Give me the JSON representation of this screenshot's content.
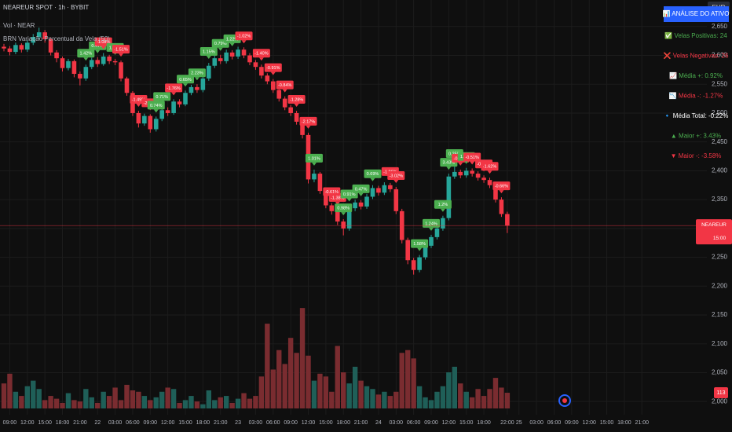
{
  "header": {
    "symbol": "NEAREUR SPOT · 1h · BYBIT",
    "volume": "Vol · NEAR",
    "indicator": "BRN Variação Percentual da Vela (50)"
  },
  "panel": {
    "title": "📊 ANÁLISE DO ATIVO",
    "rows": [
      {
        "text": "✅ Velas Positivas: 24",
        "color": "#4caf50"
      },
      {
        "text": "❌ Velas Negativas: 26",
        "color": "#f23645"
      },
      {
        "text": "📈 Média +: 0.92%",
        "color": "#4caf50"
      },
      {
        "text": "📉 Média -: -1.27%",
        "color": "#f23645"
      },
      {
        "text": "🔹 Média Total: -0.22%",
        "color": "#ffffff"
      },
      {
        "text": "▲ Maior +: 3.43%",
        "color": "#4caf50"
      },
      {
        "text": "▼ Maior -: -3.58%",
        "color": "#f23645"
      }
    ]
  },
  "chart_data": {
    "type": "candlestick",
    "currency": "EUR",
    "price_tag": "NEAREUR",
    "countdown": "15:00",
    "up_color": "#26a69a",
    "down_color": "#f23645",
    "open": [
      2615,
      2612,
      2606,
      2618,
      2610,
      2622,
      2632,
      2640,
      2628,
      2605,
      2595,
      2578,
      2590,
      2568,
      2560,
      2580,
      2592,
      2585,
      2598,
      2590,
      2588,
      2560,
      2535,
      2500,
      2482,
      2495,
      2472,
      2490,
      2505,
      2500,
      2520,
      2515,
      2535,
      2545,
      2540,
      2560,
      2582,
      2595,
      2590,
      2605,
      2598,
      2610,
      2600,
      2588,
      2580,
      2565,
      2555,
      2540,
      2525,
      2510,
      2500,
      2485,
      2462,
      2385,
      2395,
      2365,
      2340,
      2330,
      2312,
      2300,
      2335,
      2345,
      2338,
      2355,
      2370,
      2362,
      2375,
      2368,
      2330,
      2280,
      2245,
      2228,
      2250,
      2270,
      2285,
      2300,
      2318,
      2390,
      2398,
      2392,
      2400,
      2395,
      2388,
      2384,
      2375,
      2350,
      2325
    ],
    "high": [
      2620,
      2616,
      2622,
      2621,
      2626,
      2637,
      2648,
      2644,
      2631,
      2609,
      2598,
      2594,
      2593,
      2572,
      2584,
      2596,
      2597,
      2604,
      2601,
      2594,
      2591,
      2563,
      2538,
      2504,
      2499,
      2498,
      2494,
      2509,
      2510,
      2524,
      2524,
      2539,
      2549,
      2550,
      2564,
      2587,
      2600,
      2601,
      2610,
      2609,
      2615,
      2614,
      2604,
      2592,
      2584,
      2569,
      2559,
      2544,
      2529,
      2514,
      2504,
      2489,
      2466,
      2402,
      2398,
      2369,
      2344,
      2334,
      2316,
      2340,
      2350,
      2349,
      2360,
      2375,
      2374,
      2380,
      2379,
      2372,
      2334,
      2284,
      2249,
      2254,
      2274,
      2289,
      2304,
      2322,
      2395,
      2410,
      2402,
      2405,
      2404,
      2399,
      2392,
      2388,
      2379,
      2354,
      2329
    ],
    "low": [
      2607,
      2600,
      2602,
      2605,
      2606,
      2618,
      2628,
      2622,
      2600,
      2588,
      2572,
      2574,
      2562,
      2548,
      2556,
      2576,
      2580,
      2582,
      2585,
      2583,
      2555,
      2530,
      2495,
      2475,
      2478,
      2466,
      2468,
      2486,
      2495,
      2497,
      2510,
      2512,
      2531,
      2535,
      2536,
      2556,
      2578,
      2585,
      2586,
      2593,
      2594,
      2595,
      2583,
      2575,
      2560,
      2550,
      2535,
      2520,
      2505,
      2495,
      2480,
      2456,
      2378,
      2380,
      2360,
      2335,
      2324,
      2306,
      2288,
      2296,
      2330,
      2333,
      2334,
      2351,
      2357,
      2358,
      2363,
      2325,
      2274,
      2238,
      2220,
      2224,
      2246,
      2266,
      2281,
      2296,
      2314,
      2386,
      2387,
      2388,
      2390,
      2383,
      2379,
      2370,
      2345,
      2320,
      2292
    ],
    "close": [
      2612,
      2606,
      2618,
      2610,
      2622,
      2632,
      2640,
      2628,
      2605,
      2595,
      2578,
      2590,
      2568,
      2560,
      2580,
      2592,
      2585,
      2598,
      2590,
      2588,
      2560,
      2535,
      2500,
      2482,
      2495,
      2472,
      2490,
      2505,
      2500,
      2520,
      2515,
      2535,
      2545,
      2540,
      2560,
      2582,
      2595,
      2590,
      2605,
      2598,
      2610,
      2600,
      2588,
      2580,
      2565,
      2555,
      2540,
      2525,
      2510,
      2500,
      2485,
      2462,
      2385,
      2395,
      2365,
      2340,
      2330,
      2312,
      2300,
      2335,
      2345,
      2338,
      2355,
      2370,
      2362,
      2375,
      2368,
      2330,
      2280,
      2245,
      2228,
      2250,
      2270,
      2285,
      2300,
      2318,
      2390,
      2398,
      2392,
      2400,
      2395,
      2388,
      2384,
      2375,
      2350,
      2325,
      2305
    ],
    "volume": {
      "values": [
        180,
        250,
        120,
        90,
        160,
        200,
        140,
        60,
        90,
        70,
        40,
        110,
        60,
        50,
        140,
        80,
        40,
        120,
        90,
        150,
        60,
        170,
        130,
        120,
        90,
        60,
        80,
        120,
        150,
        140,
        40,
        60,
        90,
        50,
        30,
        130,
        60,
        80,
        90,
        40,
        70,
        110,
        70,
        90,
        230,
        610,
        280,
        420,
        320,
        508,
        400,
        723,
        380,
        200,
        250,
        230,
        120,
        450,
        260,
        180,
        300,
        200,
        160,
        140,
        100,
        120,
        90,
        120,
        400,
        420,
        360,
        160,
        80,
        60,
        120,
        160,
        260,
        300,
        180,
        120,
        80,
        140,
        90,
        140,
        220,
        150,
        113
      ],
      "vlim": [
        0,
        735
      ],
      "up_color": "#1f5f58",
      "down_color": "#7a2c30"
    },
    "annotations": [
      {
        "at": 14,
        "text": "1.42%",
        "color": "#4caf50"
      },
      {
        "at": 16,
        "text": "0.47%",
        "color": "#4caf50"
      },
      {
        "at": 17,
        "text": "-1.08%",
        "color": "#f23645"
      },
      {
        "at": 19,
        "text": "1.45%",
        "color": "#4caf50"
      },
      {
        "at": 20,
        "text": "-1.51%",
        "color": "#f23645"
      },
      {
        "at": 23,
        "text": "-1.49%",
        "color": "#f23645"
      },
      {
        "at": 25,
        "text": "-2.24%",
        "color": "#f23645"
      },
      {
        "at": 26,
        "text": "0.74%",
        "color": "#4caf50"
      },
      {
        "at": 27,
        "text": "0.71%",
        "color": "#4caf50"
      },
      {
        "at": 29,
        "text": "-1.76%",
        "color": "#f23645"
      },
      {
        "at": 31,
        "text": "0.65%",
        "color": "#4caf50"
      },
      {
        "at": 33,
        "text": "2.23%",
        "color": "#4caf50"
      },
      {
        "at": 35,
        "text": "1.15%",
        "color": "#4caf50"
      },
      {
        "at": 37,
        "text": "0.79%",
        "color": "#4caf50"
      },
      {
        "at": 39,
        "text": "1.22%",
        "color": "#4caf50"
      },
      {
        "at": 41,
        "text": "-1.02%",
        "color": "#f23645"
      },
      {
        "at": 44,
        "text": "-1.40%",
        "color": "#f23645"
      },
      {
        "at": 46,
        "text": "-0.91%",
        "color": "#f23645"
      },
      {
        "at": 48,
        "text": "-0.84%",
        "color": "#f23645"
      },
      {
        "at": 50,
        "text": "-1.28%",
        "color": "#f23645"
      },
      {
        "at": 52,
        "text": "-2.17%",
        "color": "#f23645"
      },
      {
        "at": 53,
        "text": "1.01%",
        "color": "#4caf50"
      },
      {
        "at": 56,
        "text": "-0.61%",
        "color": "#f23645"
      },
      {
        "at": 57,
        "text": "-1.38%",
        "color": "#f23645"
      },
      {
        "at": 58,
        "text": "0.98%",
        "color": "#4caf50"
      },
      {
        "at": 59,
        "text": "0.91%",
        "color": "#4caf50"
      },
      {
        "at": 61,
        "text": "0.47%",
        "color": "#4caf50"
      },
      {
        "at": 63,
        "text": "0.69%",
        "color": "#4caf50"
      },
      {
        "at": 66,
        "text": "-1.86%",
        "color": "#f23645"
      },
      {
        "at": 67,
        "text": "-3.02%",
        "color": "#f23645"
      },
      {
        "at": 71,
        "text": "1.58%",
        "color": "#4caf50"
      },
      {
        "at": 73,
        "text": "1.24%",
        "color": "#4caf50"
      },
      {
        "at": 75,
        "text": "1.2%",
        "color": "#4caf50"
      },
      {
        "at": 76,
        "text": "3.43%",
        "color": "#4caf50"
      },
      {
        "at": 77,
        "text": "0.25%",
        "color": "#4caf50"
      },
      {
        "at": 78,
        "text": "-0.59%",
        "color": "#f23645"
      },
      {
        "at": 79,
        "text": "1.18%",
        "color": "#4caf50"
      },
      {
        "at": 80,
        "text": "-0.51%",
        "color": "#f23645"
      },
      {
        "at": 82,
        "text": "-0.53%",
        "color": "#f23645"
      },
      {
        "at": 83,
        "text": "-1.62%",
        "color": "#f23645"
      },
      {
        "at": 85,
        "text": "-0.66%",
        "color": "#f23645"
      }
    ],
    "ylim": [
      1988,
      2696
    ],
    "yticks": [
      {
        "value": 2000,
        "label": "2,000"
      },
      {
        "value": 2050,
        "label": "2,050"
      },
      {
        "value": 2100,
        "label": "2,100"
      },
      {
        "value": 2150,
        "label": "2,150"
      },
      {
        "value": 2200,
        "label": "2,200"
      },
      {
        "value": 2250,
        "label": "2,250"
      },
      {
        "value": 2300,
        "label": "2,300"
      },
      {
        "value": 2350,
        "label": "2,350"
      },
      {
        "value": 2400,
        "label": "2,400"
      },
      {
        "value": 2450,
        "label": "2,450"
      },
      {
        "value": 2500,
        "label": "2,500"
      },
      {
        "value": 2550,
        "label": "2,550"
      },
      {
        "value": 2600,
        "label": "2,600"
      },
      {
        "value": 2650,
        "label": "2,650"
      }
    ],
    "xlim": [
      -0.67,
      120.1
    ],
    "xticks": [
      {
        "value": 1,
        "label": "09:00"
      },
      {
        "value": 4,
        "label": "12:00"
      },
      {
        "value": 7,
        "label": "15:00"
      },
      {
        "value": 10,
        "label": "18:00"
      },
      {
        "value": 13,
        "label": "21:00"
      },
      {
        "value": 16,
        "label": "22"
      },
      {
        "value": 19,
        "label": "03:00"
      },
      {
        "value": 22,
        "label": "06:00"
      },
      {
        "value": 25,
        "label": "09:00"
      },
      {
        "value": 28,
        "label": "12:00"
      },
      {
        "value": 31,
        "label": "15:00"
      },
      {
        "value": 34,
        "label": "18:00"
      },
      {
        "value": 37,
        "label": "21:00"
      },
      {
        "value": 40,
        "label": "23"
      },
      {
        "value": 43,
        "label": "03:00"
      },
      {
        "value": 46,
        "label": "06:00"
      },
      {
        "value": 49,
        "label": "09:00"
      },
      {
        "value": 52,
        "label": "12:00"
      },
      {
        "value": 55,
        "label": "15:00"
      },
      {
        "value": 58,
        "label": "18:00"
      },
      {
        "value": 61,
        "label": "21:00"
      },
      {
        "value": 64,
        "label": "24"
      },
      {
        "value": 67,
        "label": "03:00"
      },
      {
        "value": 70,
        "label": "06:00"
      },
      {
        "value": 73,
        "label": "09:00"
      },
      {
        "value": 76,
        "label": "12:00"
      },
      {
        "value": 79,
        "label": "15:00"
      },
      {
        "value": 82,
        "label": "18:00"
      },
      {
        "value": 86,
        "label": "22:00"
      },
      {
        "value": 88,
        "label": "25"
      },
      {
        "value": 91,
        "label": "03:00"
      },
      {
        "value": 94,
        "label": "06:00"
      },
      {
        "value": 97,
        "label": "09:00"
      },
      {
        "value": 100,
        "label": "12:00"
      },
      {
        "value": 103,
        "label": "15:00"
      },
      {
        "value": 106,
        "label": "18:00"
      },
      {
        "value": 109,
        "label": "21:00"
      }
    ],
    "grid": true
  }
}
